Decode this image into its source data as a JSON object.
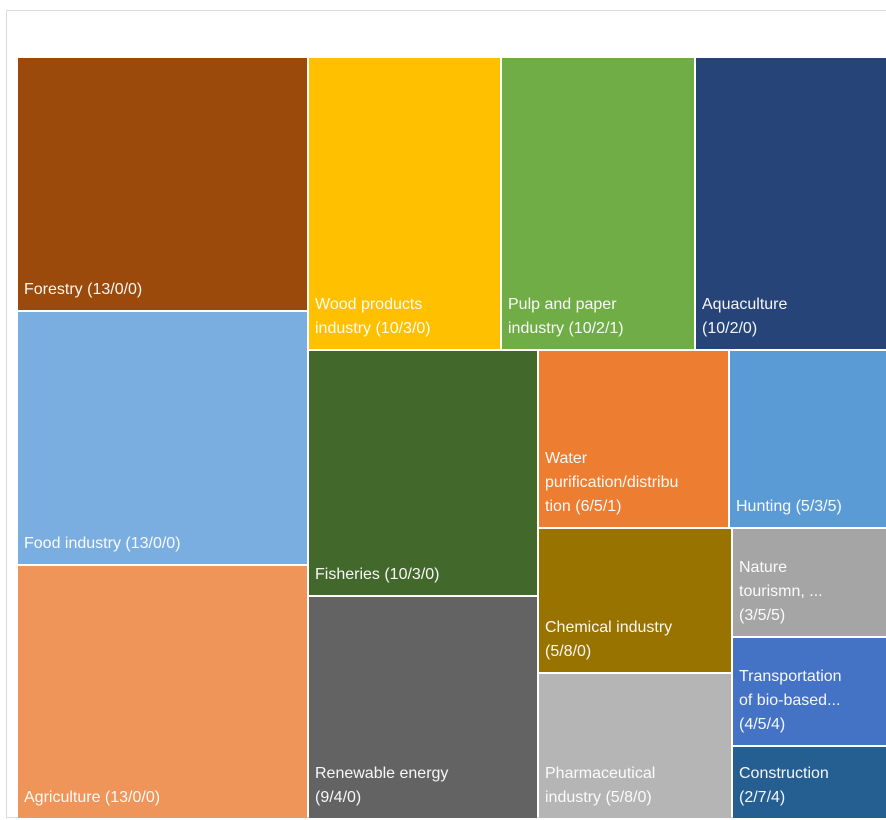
{
  "chart_data": {
    "type": "treemap",
    "tiles": [
      {
        "label": "Forestry (13/0/0)",
        "value": 13,
        "counts": [
          13,
          0,
          0
        ],
        "color": "#9C4A0B"
      },
      {
        "label": "Food industry (13/0/0)",
        "value": 13,
        "counts": [
          13,
          0,
          0
        ],
        "color": "#7BAEE0"
      },
      {
        "label": "Agriculture (13/0/0)",
        "value": 13,
        "counts": [
          13,
          0,
          0
        ],
        "color": "#F0955A"
      },
      {
        "label": "Wood products\nindustry (10/3/0)",
        "value": 13,
        "counts": [
          10,
          3,
          0
        ],
        "color": "#FFC000"
      },
      {
        "label": "Pulp and paper\nindustry (10/2/1)",
        "value": 13,
        "counts": [
          10,
          2,
          1
        ],
        "color": "#70AD47"
      },
      {
        "label": "Aquaculture\n(10/2/0)",
        "value": 12,
        "counts": [
          10,
          2,
          0
        ],
        "color": "#264478"
      },
      {
        "label": "Fisheries (10/3/0)",
        "value": 13,
        "counts": [
          10,
          3,
          0
        ],
        "color": "#43682B"
      },
      {
        "label": "Renewable energy\n(9/4/0)",
        "value": 13,
        "counts": [
          9,
          4,
          0
        ],
        "color": "#636363"
      },
      {
        "label": "Water\npurification/distribu\ntion (6/5/1)",
        "value": 12,
        "counts": [
          6,
          5,
          1
        ],
        "color": "#ED7D31"
      },
      {
        "label": "Chemical industry\n(5/8/0)",
        "value": 13,
        "counts": [
          5,
          8,
          0
        ],
        "color": "#997300"
      },
      {
        "label": "Pharmaceutical\nindustry (5/8/0)",
        "value": 13,
        "counts": [
          5,
          8,
          0
        ],
        "color": "#B5B5B5"
      },
      {
        "label": "Hunting (5/3/5)",
        "value": 13,
        "counts": [
          5,
          3,
          5
        ],
        "color": "#5B9BD5"
      },
      {
        "label": "Nature\ntourismn, ...\n(3/5/5)",
        "value": 13,
        "counts": [
          3,
          5,
          5
        ],
        "color": "#A5A5A5"
      },
      {
        "label": "Transportation\nof bio-based...\n(4/5/4)",
        "value": 13,
        "counts": [
          4,
          5,
          4
        ],
        "color": "#4472C4"
      },
      {
        "label": "Construction\n(2/7/4)",
        "value": 13,
        "counts": [
          2,
          7,
          4
        ],
        "color": "#255E91"
      }
    ]
  }
}
